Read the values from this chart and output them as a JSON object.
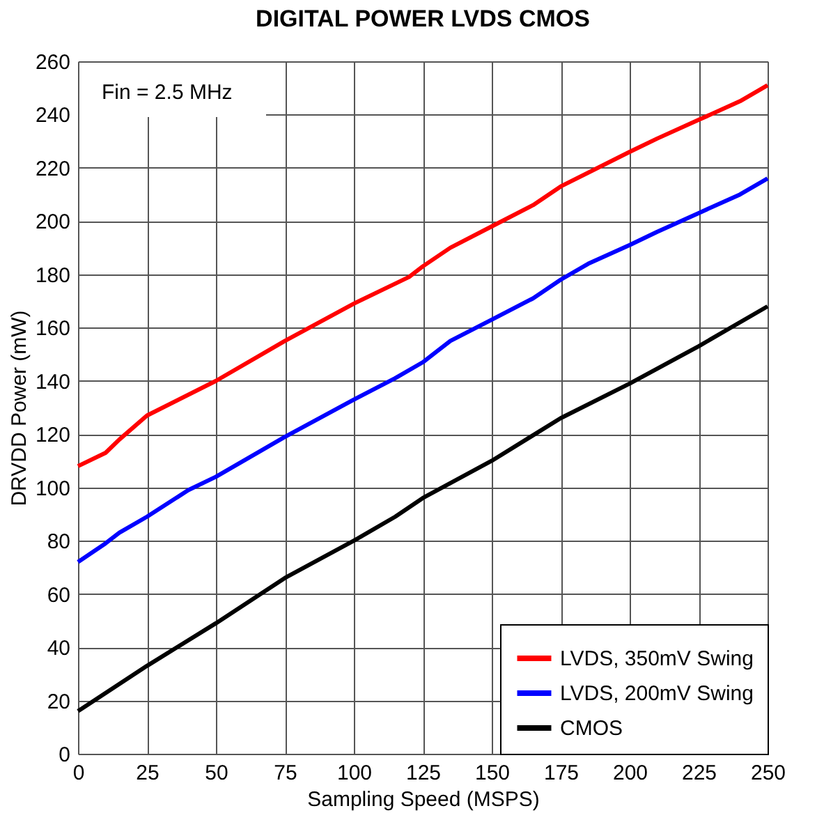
{
  "chart_data": {
    "type": "line",
    "title": "DIGITAL POWER LVDS CMOS",
    "xlabel": "Sampling Speed (MSPS)",
    "ylabel": "DRVDD Power (mW)",
    "annotations": [
      "Fin = 2.5 MHz"
    ],
    "xlim": [
      0,
      250
    ],
    "xticks": [
      0,
      25,
      50,
      75,
      100,
      125,
      150,
      175,
      200,
      225,
      250
    ],
    "ylim": [
      0,
      260
    ],
    "yticks": [
      0,
      20,
      40,
      60,
      80,
      100,
      120,
      140,
      160,
      180,
      200,
      220,
      240,
      260
    ],
    "grid": true,
    "legend": "bottom right",
    "line_style": "solid",
    "marker": "none",
    "series": [
      {
        "name": "LVDS, 350mV Swing",
        "color": "#ff0000",
        "x": [
          0,
          10,
          15,
          25,
          50,
          75,
          100,
          120,
          125,
          135,
          150,
          165,
          175,
          200,
          210,
          225,
          240,
          250
        ],
        "values": [
          108,
          113,
          118,
          127,
          140,
          155,
          169,
          179,
          183,
          190,
          198,
          206,
          213,
          226,
          231,
          238,
          245,
          251
        ]
      },
      {
        "name": "LVDS, 200mV Swing",
        "color": "#0000ff",
        "x": [
          0,
          10,
          15,
          25,
          40,
          50,
          75,
          100,
          115,
          125,
          135,
          150,
          165,
          175,
          185,
          200,
          210,
          225,
          240,
          250
        ],
        "values": [
          72,
          79,
          83,
          89,
          99,
          104,
          119,
          133,
          141,
          147,
          155,
          163,
          171,
          178,
          184,
          191,
          196,
          203,
          210,
          216
        ]
      },
      {
        "name": "CMOS",
        "color": "#000000",
        "x": [
          0,
          25,
          50,
          75,
          100,
          115,
          125,
          150,
          175,
          200,
          225,
          250
        ],
        "values": [
          16,
          33,
          49,
          66,
          80,
          89,
          96,
          110,
          126,
          139,
          153,
          168
        ]
      }
    ]
  }
}
